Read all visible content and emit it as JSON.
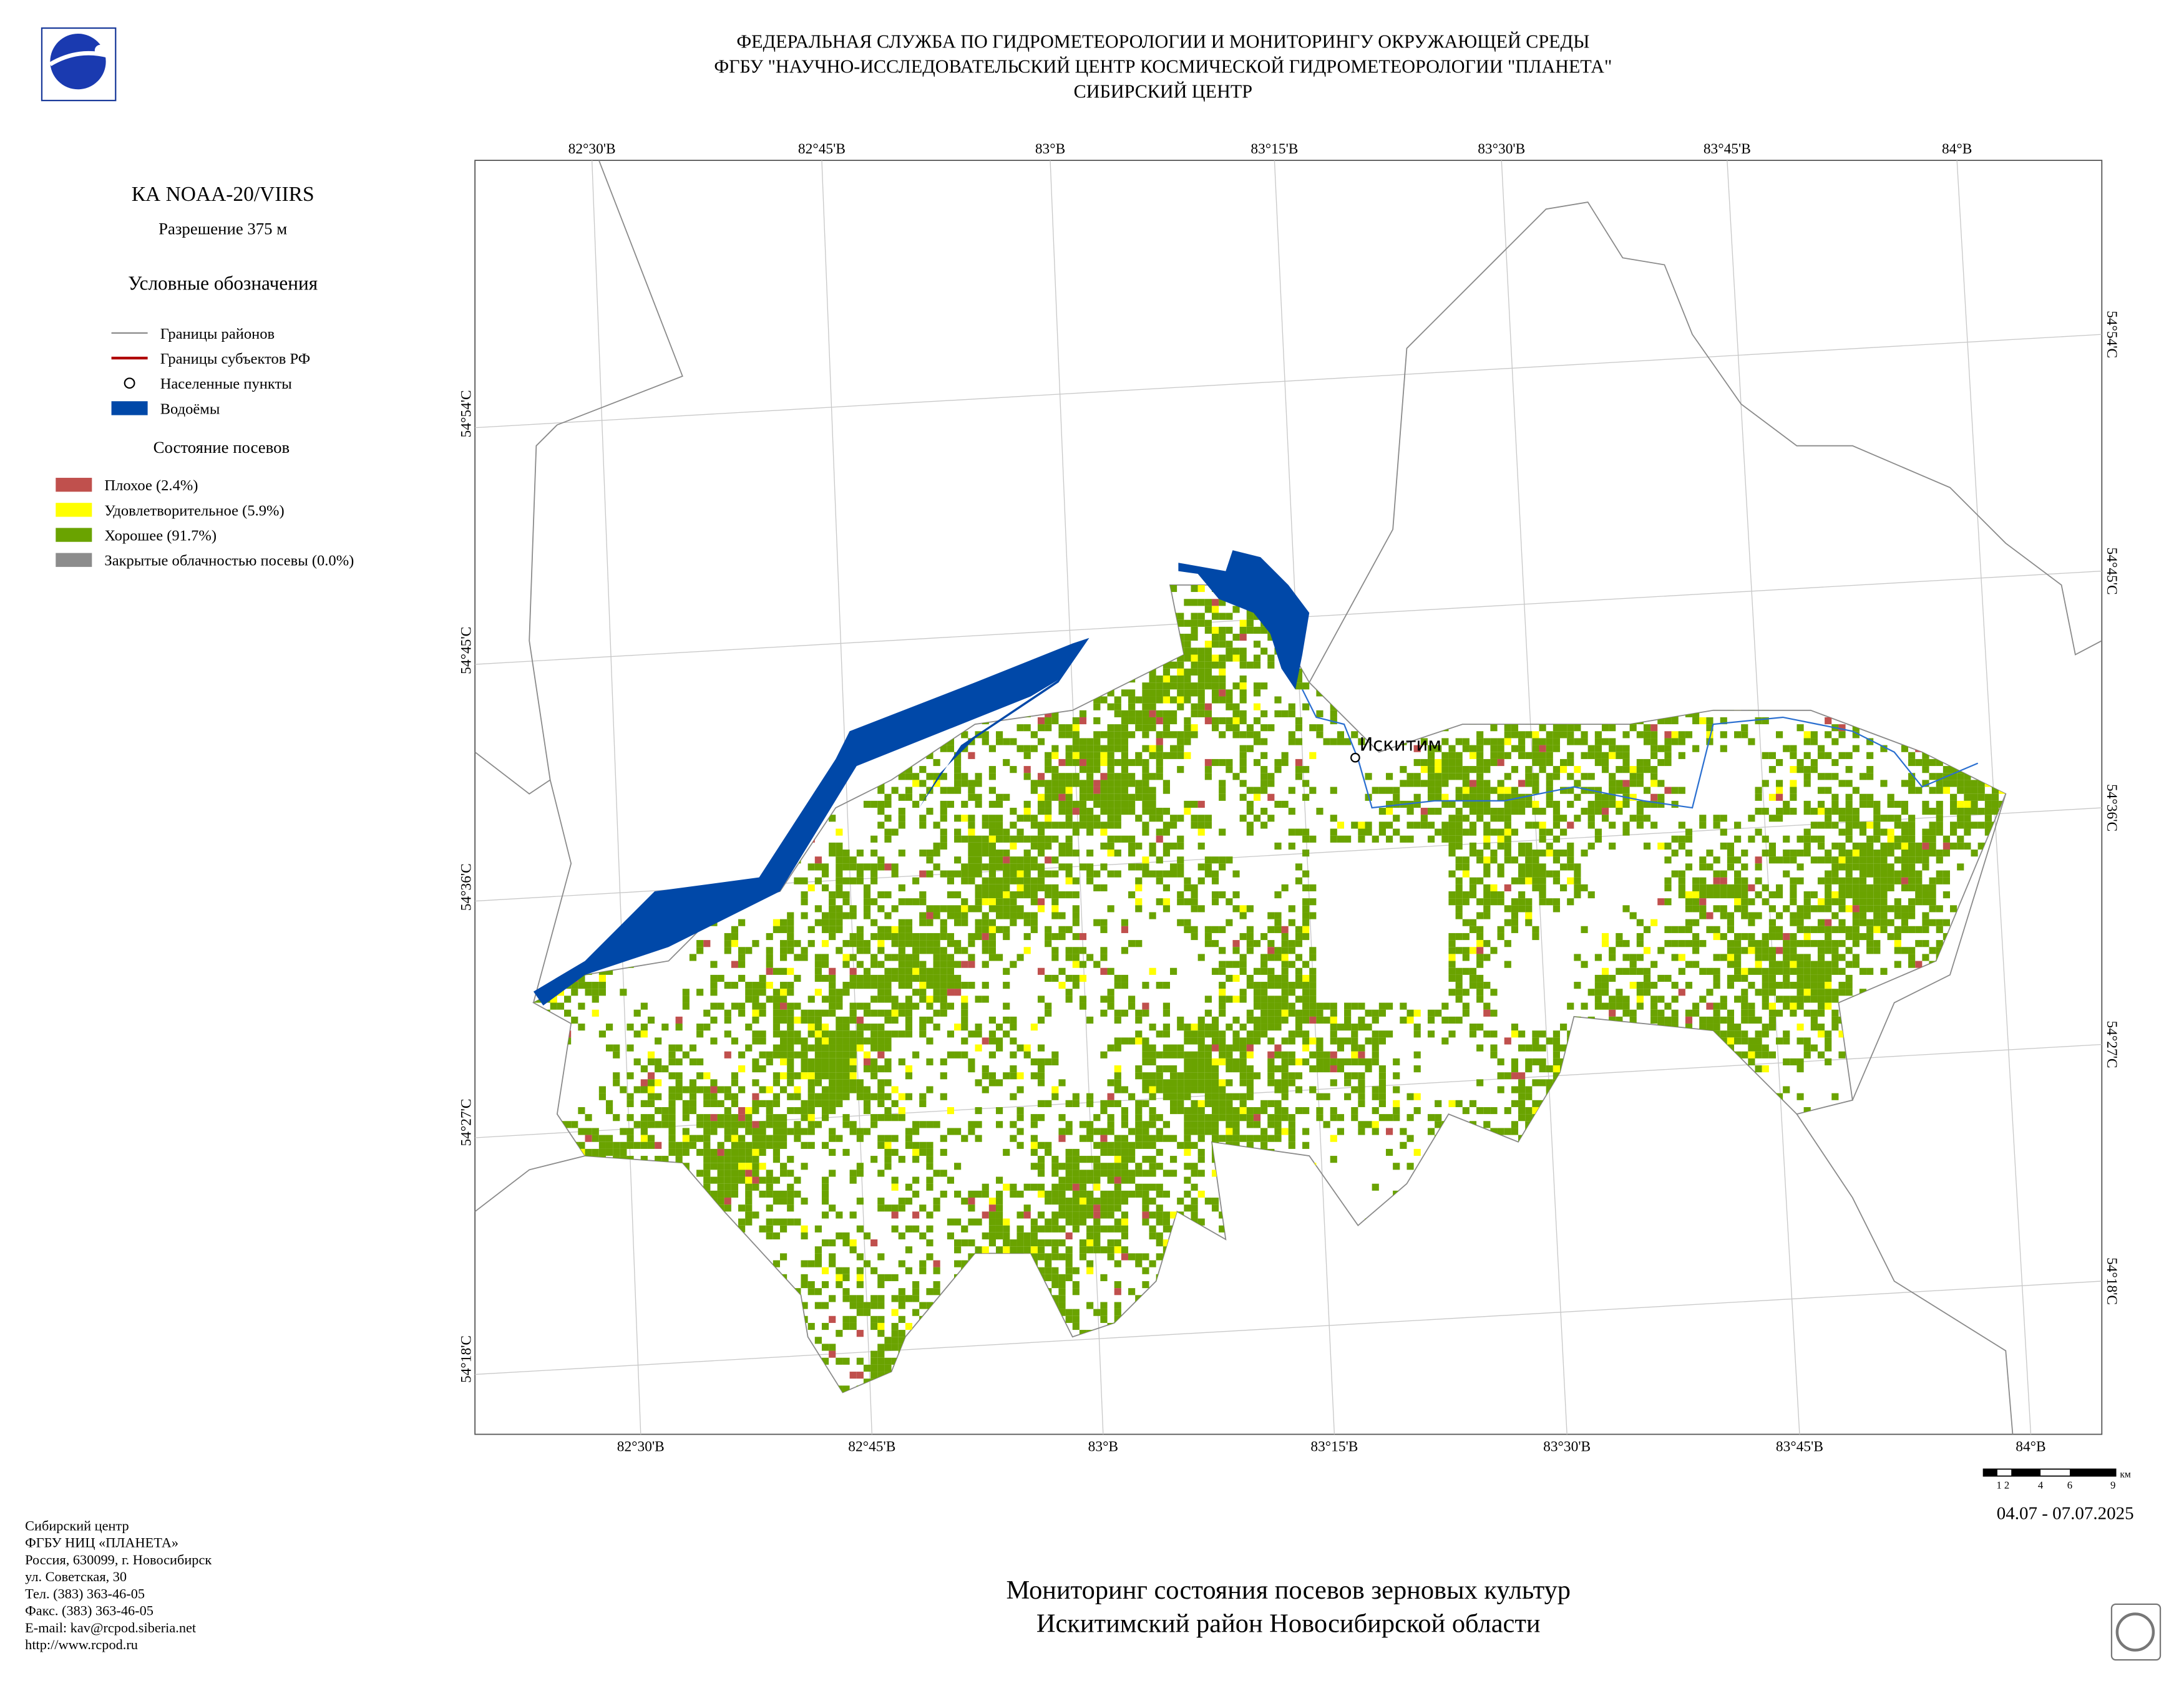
{
  "header": {
    "lines": [
      "ФЕДЕРАЛЬНАЯ СЛУЖБА ПО ГИДРОМЕТЕОРОЛОГИИ И МОНИТОРИНГУ ОКРУЖАЮЩЕЙ СРЕДЫ",
      "ФГБУ \"НАУЧНО-ИССЛЕДОВАТЕЛЬСКИЙ ЦЕНТР КОСМИЧЕСКОЙ ГИДРОМЕТЕОРОЛОГИИ \"ПЛАНЕТА\"",
      "СИБИРСКИЙ ЦЕНТР"
    ]
  },
  "sidebar": {
    "satellite": "КА NOAA-20/VIIRS",
    "resolution": "Разрешение 375 м",
    "legend_title": "Условные обозначения",
    "legend": [
      "Границы районов",
      "Границы субъектов РФ",
      "Населенные пункты",
      "Водоёмы"
    ],
    "crop_title": "Состояние посевов",
    "crop_legend": [
      "Плохое (2.4%)",
      "Удовлетворительное (5.9%)",
      "Хорошее (91.7%)",
      "Закрытые облачностью посевы (0.0%)"
    ]
  },
  "map": {
    "top_labels": [
      "82°30'В",
      "82°45'В",
      "83°В",
      "83°15'В",
      "83°30'В",
      "83°45'В",
      "84°В"
    ],
    "bottom_labels": [
      "82°30'В",
      "82°45'В",
      "83°В",
      "83°15'В",
      "83°30'В",
      "83°45'В",
      "84°В"
    ],
    "left_labels": [
      "54°54'С",
      "54°45'С",
      "54°36'С",
      "54°27'С",
      "54°18'С"
    ],
    "right_labels": [
      "54°54'С",
      "54°45'С",
      "54°36'С",
      "54°27'С",
      "54°18'С"
    ],
    "city": "Искитим",
    "scale_labels": [
      "1 2",
      "4",
      "6",
      "9"
    ],
    "scale_unit": "км"
  },
  "date": "04.07 - 07.07.2025",
  "title": {
    "lines": [
      "Мониторинг состояния посевов зерновых культур",
      "Искитимский район Новосибирской области"
    ]
  },
  "contacts": [
    "Сибирский центр",
    "ФГБУ НИЦ «ПЛАНЕТА»",
    "Россия, 630099, г. Новосибирск",
    "ул. Советская, 30",
    "Тел. (383) 363-46-05",
    "Факс. (383) 363-46-05",
    "E-mail: kav@rcpod.siberia.net",
    "http://www.rcpod.ru"
  ]
}
